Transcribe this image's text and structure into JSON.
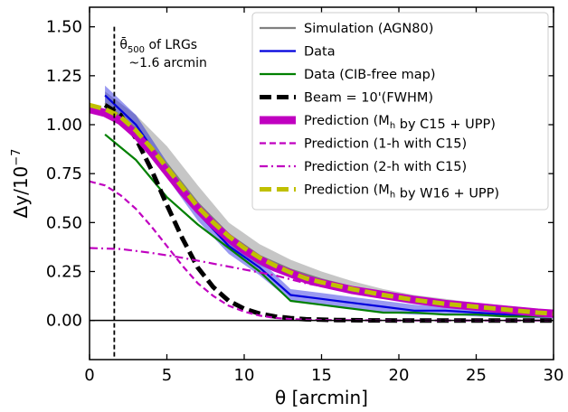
{
  "chart_data": {
    "type": "line",
    "xlabel": "θ [arcmin]",
    "ylabel_main": "Δy/10",
    "ylabel_exp": "−7",
    "xlim": [
      0,
      30
    ],
    "ylim": [
      -0.2,
      1.6
    ],
    "xticks": [
      0,
      5,
      10,
      15,
      20,
      25,
      30
    ],
    "xtick_labels": [
      "0",
      "5",
      "10",
      "15",
      "20",
      "25",
      "30"
    ],
    "yticks": [
      0.0,
      0.25,
      0.5,
      0.75,
      1.0,
      1.25,
      1.5
    ],
    "ytick_labels": [
      "0.00",
      "0.25",
      "0.50",
      "0.75",
      "1.00",
      "1.25",
      "1.50"
    ],
    "grid": false,
    "legend_position": "top-right",
    "zero_line": 0,
    "annotation": {
      "x": 1.6,
      "line1_main": "θ̄",
      "line1_sub": "500",
      "line1_rest": " of LRGs",
      "line2": "~1.6 arcmin"
    },
    "series": [
      {
        "name": "Simulation (AGN80)",
        "color": "#808080",
        "style": "solid",
        "x": [
          1,
          3,
          5,
          7,
          9,
          11,
          13,
          15,
          17,
          19,
          21,
          23,
          25,
          27,
          29,
          30
        ],
        "y": [
          1.11,
          0.98,
          0.8,
          0.6,
          0.44,
          0.33,
          0.26,
          0.21,
          0.17,
          0.14,
          0.11,
          0.09,
          0.07,
          0.06,
          0.045,
          0.04
        ],
        "band_lower": [
          1.06,
          0.94,
          0.74,
          0.54,
          0.38,
          0.28,
          0.22,
          0.18,
          0.14,
          0.11,
          0.09,
          0.07,
          0.055,
          0.045,
          0.035,
          0.03
        ],
        "band_upper": [
          1.17,
          1.05,
          0.89,
          0.69,
          0.5,
          0.39,
          0.31,
          0.25,
          0.2,
          0.16,
          0.13,
          0.11,
          0.09,
          0.075,
          0.06,
          0.05
        ]
      },
      {
        "name": "Data",
        "color": "#0000dd",
        "style": "solid",
        "x": [
          1,
          3,
          5,
          7,
          9,
          11,
          13,
          15,
          17,
          19,
          21,
          23,
          25,
          27,
          29,
          30
        ],
        "y": [
          1.15,
          1.0,
          0.77,
          0.55,
          0.38,
          0.27,
          0.13,
          0.11,
          0.09,
          0.07,
          0.05,
          0.05,
          0.04,
          0.03,
          0.02,
          0.02
        ],
        "band_lower": [
          1.1,
          0.96,
          0.73,
          0.51,
          0.34,
          0.23,
          0.1,
          0.08,
          0.06,
          0.04,
          0.03,
          0.03,
          0.02,
          0.015,
          0.01,
          0.01
        ],
        "band_upper": [
          1.2,
          1.05,
          0.81,
          0.59,
          0.42,
          0.31,
          0.16,
          0.14,
          0.12,
          0.1,
          0.08,
          0.07,
          0.06,
          0.05,
          0.04,
          0.04
        ]
      },
      {
        "name": "Data (CIB-free map)",
        "color": "#008000",
        "style": "solid",
        "x": [
          1,
          3,
          5,
          7,
          9,
          11,
          13,
          15,
          17,
          19,
          21,
          23,
          25,
          27,
          29,
          30
        ],
        "y": [
          0.95,
          0.82,
          0.63,
          0.49,
          0.37,
          0.25,
          0.1,
          0.08,
          0.06,
          0.04,
          0.04,
          0.03,
          0.03,
          0.02,
          0.02,
          0.02
        ]
      },
      {
        "name": "Beam = 10'(FWHM)",
        "color": "#000000",
        "style": "dashed-thick",
        "x": [
          1,
          2,
          3,
          4,
          5,
          6,
          7,
          8,
          9,
          10,
          11,
          12,
          13,
          14,
          16,
          18,
          20,
          25,
          30
        ],
        "y": [
          1.1,
          1.05,
          0.93,
          0.77,
          0.59,
          0.42,
          0.27,
          0.17,
          0.1,
          0.06,
          0.035,
          0.02,
          0.012,
          0.006,
          0.002,
          0.0005,
          0.0,
          0.0,
          0.0
        ]
      },
      {
        "name": "Prediction (M<sub>h</sub> by C15 + UPP)",
        "color": "#c000c0",
        "style": "solid-thick",
        "x": [
          0,
          1,
          2,
          3,
          4,
          5,
          6,
          7,
          8,
          9,
          10,
          11,
          12,
          13,
          14,
          15,
          17,
          19,
          21,
          23,
          25,
          27,
          29,
          30
        ],
        "y": [
          1.08,
          1.06,
          1.02,
          0.95,
          0.86,
          0.76,
          0.66,
          0.57,
          0.49,
          0.42,
          0.36,
          0.31,
          0.27,
          0.24,
          0.21,
          0.19,
          0.155,
          0.13,
          0.105,
          0.085,
          0.07,
          0.055,
          0.04,
          0.035
        ]
      },
      {
        "name": "Prediction (1-h with C15)",
        "color": "#c000c0",
        "style": "dashed",
        "x": [
          0,
          1,
          2,
          3,
          4,
          5,
          6,
          7,
          8,
          9,
          10,
          11,
          12,
          13,
          14,
          15,
          17,
          20,
          25,
          30
        ],
        "y": [
          0.71,
          0.69,
          0.64,
          0.57,
          0.48,
          0.38,
          0.28,
          0.19,
          0.125,
          0.075,
          0.045,
          0.025,
          0.013,
          0.007,
          0.004,
          0.002,
          0.001,
          0.0,
          0.0,
          0.0
        ]
      },
      {
        "name": "Prediction (2-h with C15)",
        "color": "#c000c0",
        "style": "dashdot",
        "x": [
          0,
          2,
          4,
          6,
          8,
          10,
          12,
          14,
          16,
          18,
          20,
          22,
          24,
          26,
          28,
          30
        ],
        "y": [
          0.37,
          0.365,
          0.345,
          0.32,
          0.29,
          0.26,
          0.23,
          0.19,
          0.16,
          0.13,
          0.105,
          0.085,
          0.07,
          0.055,
          0.045,
          0.035
        ]
      },
      {
        "name": "Prediction (M<sub>h</sub> by W16 + UPP)",
        "color": "#c0c000",
        "style": "dashed-thick",
        "x": [
          0,
          1,
          2,
          3,
          4,
          5,
          6,
          7,
          8,
          9,
          10,
          11,
          12,
          13,
          14,
          15,
          17,
          19,
          21,
          23,
          25,
          27,
          29,
          30
        ],
        "y": [
          1.1,
          1.08,
          1.04,
          0.97,
          0.88,
          0.78,
          0.68,
          0.58,
          0.5,
          0.43,
          0.37,
          0.32,
          0.28,
          0.245,
          0.215,
          0.195,
          0.16,
          0.13,
          0.105,
          0.085,
          0.07,
          0.055,
          0.04,
          0.035
        ]
      }
    ]
  }
}
